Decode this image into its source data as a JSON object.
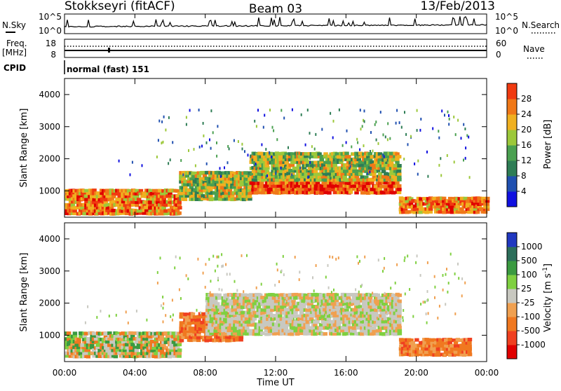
{
  "header": {
    "station": "Stokkseyri (fitACF)",
    "beam": "Beam 03",
    "date": "13/Feb/2013"
  },
  "strips": {
    "nsky_label": "N.Sky",
    "nsky_ticks": [
      "10^5",
      "10^0"
    ],
    "nsearch_label": "N.Search",
    "nsearch_ticks": [
      "10^5",
      "10^0"
    ],
    "freq_label": "Freq.",
    "freq_unit": "[MHz]",
    "freq_ticks": [
      "18",
      "8"
    ],
    "nave_label": "Nave",
    "nave_ticks": [
      "60",
      "0"
    ],
    "cpid_label": "CPID",
    "cpid_value": "normal (fast) 151"
  },
  "x_axis": {
    "label": "Time UT",
    "ticks": [
      "00:00",
      "04:00",
      "08:00",
      "12:00",
      "16:00",
      "20:00",
      "00:00"
    ]
  },
  "colors": {
    "power": [
      "#1010e0",
      "#2050b0",
      "#2e7d55",
      "#4aa050",
      "#9cc83a",
      "#f0b020",
      "#f07818",
      "#f03a10",
      "#e00000"
    ],
    "velocity": [
      "#2038c0",
      "#2c6e5a",
      "#3a9a40",
      "#7fd040",
      "#c8c8c0",
      "#f0a050",
      "#f07820",
      "#f04020",
      "#e00000"
    ]
  },
  "chart_data": [
    {
      "type": "heatmap",
      "title": "Power",
      "ylabel": "Slant Range [km]",
      "xlabel": "",
      "x_range_hours": [
        0,
        24
      ],
      "ylim": [
        180,
        4500
      ],
      "yticks": [
        1000,
        2000,
        3000,
        4000
      ],
      "colorbar": {
        "label": "Power [dB]",
        "ticks": [
          "28",
          "24",
          "20",
          "16",
          "12",
          "8",
          "4"
        ],
        "range": [
          0,
          32
        ]
      },
      "bands": [
        {
          "t_start": 0,
          "t_end": 6.5,
          "range_min": 250,
          "range_max": 1050,
          "level": "high"
        },
        {
          "t_start": 6.5,
          "t_end": 10.5,
          "range_min": 700,
          "range_max": 1600,
          "level": "medium"
        },
        {
          "t_start": 10.5,
          "t_end": 19,
          "range_min": 900,
          "range_max": 1300,
          "level": "very high"
        },
        {
          "t_start": 10.5,
          "t_end": 19,
          "range_min": 1300,
          "range_max": 2200,
          "level": "medium"
        },
        {
          "t_start": 19,
          "t_end": 24,
          "range_min": 300,
          "range_max": 800,
          "level": "high"
        }
      ]
    },
    {
      "type": "heatmap",
      "title": "Velocity",
      "ylabel": "Slant Range [km]",
      "xlabel": "Time UT",
      "x_range_hours": [
        0,
        24
      ],
      "ylim": [
        180,
        4500
      ],
      "yticks": [
        1000,
        2000,
        3000,
        4000
      ],
      "colorbar": {
        "label": "Velocity [m s-1]",
        "ticks": [
          "1000",
          "500",
          "100",
          "25",
          "-25",
          "-100",
          "-500",
          "-1000"
        ],
        "range": [
          -1000,
          1000
        ]
      },
      "bands": [
        {
          "t_start": 0,
          "t_end": 6.5,
          "range_min": 300,
          "range_max": 1100,
          "level": "mixed"
        },
        {
          "t_start": 6.5,
          "t_end": 10,
          "range_min": 800,
          "range_max": 1700,
          "level": "-100"
        },
        {
          "t_start": 8,
          "t_end": 19,
          "range_min": 1000,
          "range_max": 2300,
          "level": "0"
        },
        {
          "t_start": 19,
          "t_end": 23,
          "range_min": 350,
          "range_max": 900,
          "level": "-100"
        }
      ]
    }
  ]
}
